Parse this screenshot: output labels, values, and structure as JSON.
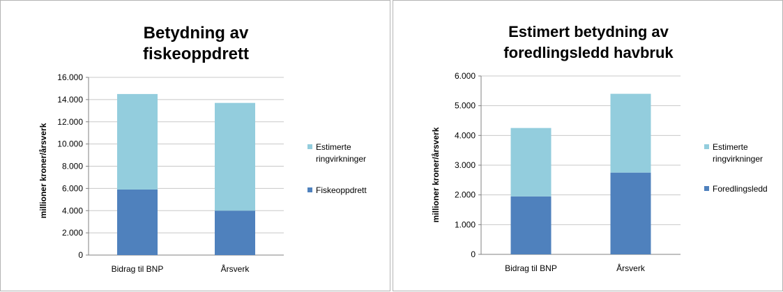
{
  "colors": {
    "base": "#4f81bd",
    "ringvirkninger": "#93cddd",
    "grid": "#c8c8c8",
    "axis": "#808080"
  },
  "chart_data": [
    {
      "type": "bar",
      "stacked": true,
      "title_lines": [
        "Betydning av",
        "fiskeoppdrett"
      ],
      "ylabel": "millioner kroner/årsverk",
      "xlabel": "",
      "categories": [
        "Bidrag til BNP",
        "Årsverk"
      ],
      "ylim": [
        0,
        16000
      ],
      "yticks": [
        0,
        2000,
        4000,
        6000,
        8000,
        10000,
        12000,
        14000,
        16000
      ],
      "ytick_labels": [
        "0",
        "2.000",
        "4.000",
        "6.000",
        "8.000",
        "10.000",
        "12.000",
        "14.000",
        "16.000"
      ],
      "grid": true,
      "legend_position": "right",
      "series": [
        {
          "name": "Fiskeoppdrett",
          "values": [
            5900,
            4000
          ],
          "color": "#4f81bd"
        },
        {
          "name_lines": [
            "Estimerte",
            "ringvirkninger"
          ],
          "values": [
            8600,
            9700
          ],
          "color": "#93cddd"
        }
      ]
    },
    {
      "type": "bar",
      "stacked": true,
      "title_lines": [
        "Estimert betydning av",
        "foredlingsledd havbruk"
      ],
      "ylabel": "millioner kroner/årsverk",
      "xlabel": "",
      "categories": [
        "Bidrag til BNP",
        "Årsverk"
      ],
      "ylim": [
        0,
        6000
      ],
      "yticks": [
        0,
        1000,
        2000,
        3000,
        4000,
        5000,
        6000
      ],
      "ytick_labels": [
        "0",
        "1.000",
        "2.000",
        "3.000",
        "4.000",
        "5.000",
        "6.000"
      ],
      "grid": true,
      "legend_position": "right",
      "series": [
        {
          "name": "Foredlingsledd",
          "values": [
            1950,
            2750
          ],
          "color": "#4f81bd"
        },
        {
          "name_lines": [
            "Estimerte",
            "ringvirkninger"
          ],
          "values": [
            2300,
            2650
          ],
          "color": "#93cddd"
        }
      ]
    }
  ]
}
